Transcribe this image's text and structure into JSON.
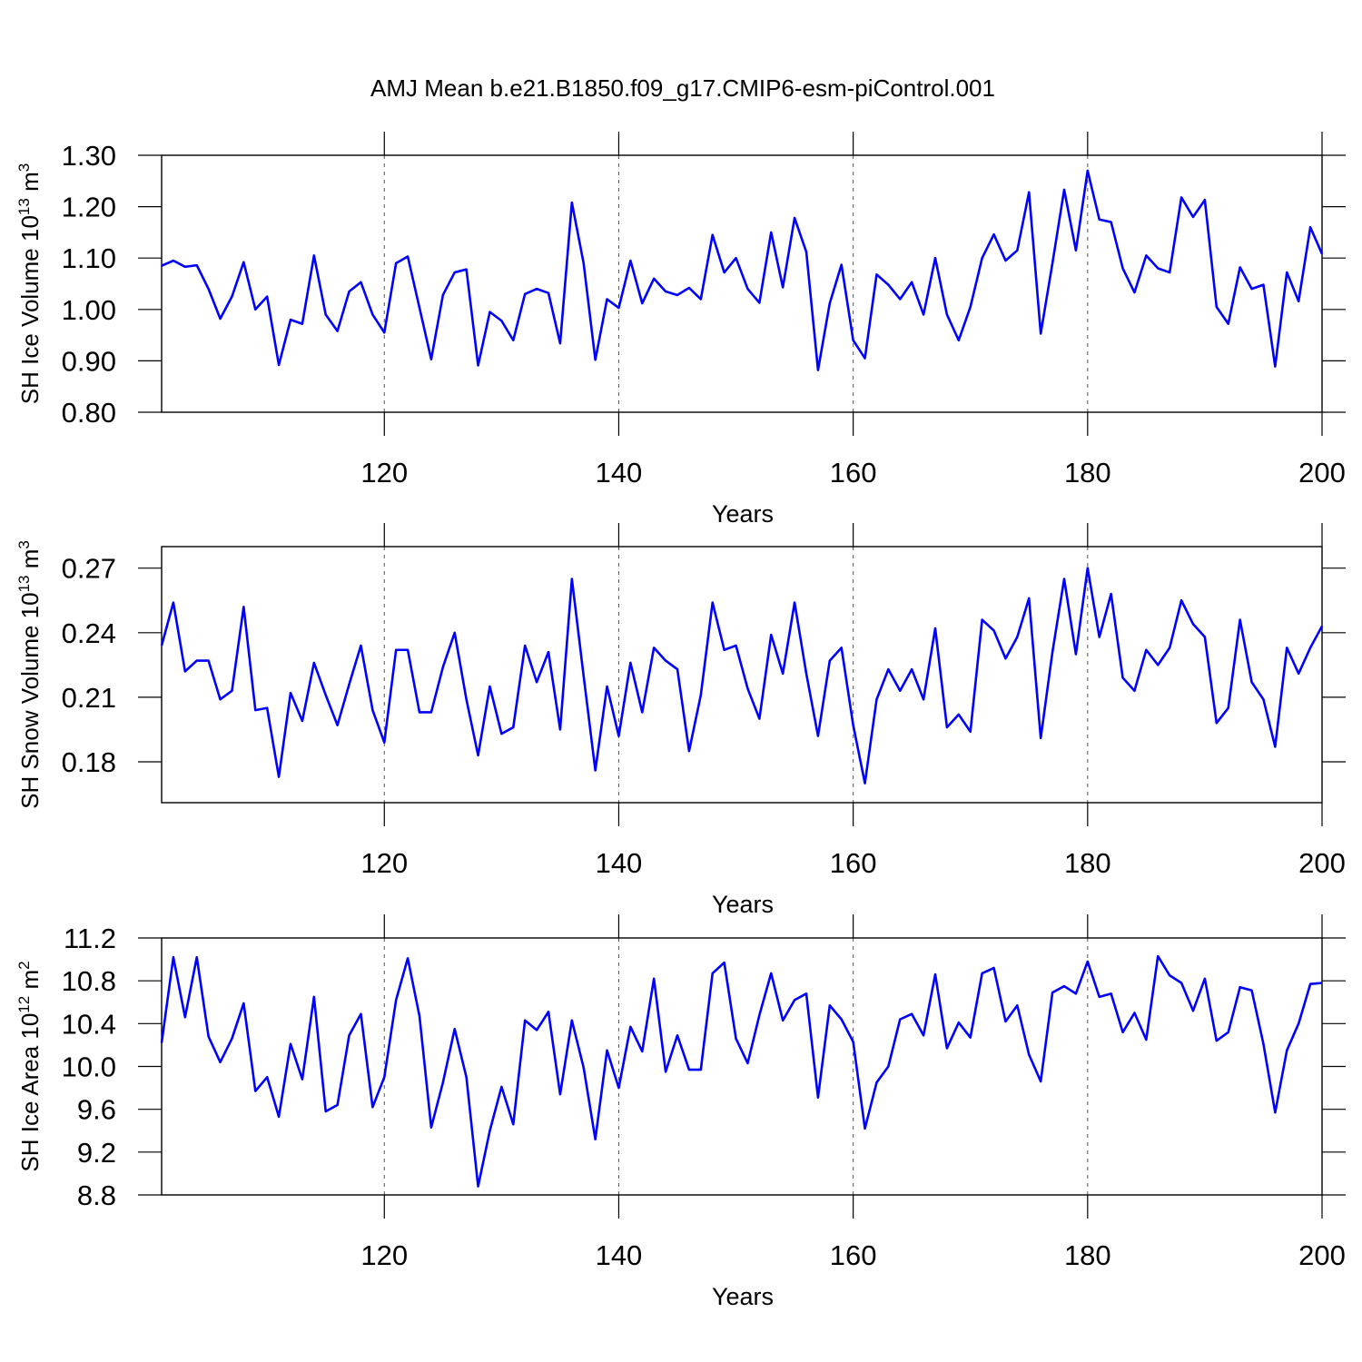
{
  "title": "AMJ Mean b.e21.B1850.f09_g17.CMIP6-esm-piControl.001",
  "chart_data": [
    {
      "type": "line",
      "xlabel": "Years",
      "ylabel": {
        "text": "SH Ice Volume 10",
        "power": "13",
        "unit": " m",
        "unit_power": "3"
      },
      "color": "#0000ff",
      "grid": true,
      "xlim": [
        101,
        200
      ],
      "xticks": [
        120,
        140,
        160,
        180,
        200
      ],
      "ylim": [
        0.8,
        1.3
      ],
      "yticks": [
        {
          "value": 0.8,
          "label": "0.80"
        },
        {
          "value": 0.9,
          "label": "0.90"
        },
        {
          "value": 1.0,
          "label": "1.00"
        },
        {
          "value": 1.1,
          "label": "1.10"
        },
        {
          "value": 1.2,
          "label": "1.20"
        },
        {
          "value": 1.3,
          "label": "1.30"
        }
      ],
      "x": [
        101,
        102,
        103,
        104,
        105,
        106,
        107,
        108,
        109,
        110,
        111,
        112,
        113,
        114,
        115,
        116,
        117,
        118,
        119,
        120,
        121,
        122,
        123,
        124,
        125,
        126,
        127,
        128,
        129,
        130,
        131,
        132,
        133,
        134,
        135,
        136,
        137,
        138,
        139,
        140,
        141,
        142,
        143,
        144,
        145,
        146,
        147,
        148,
        149,
        150,
        151,
        152,
        153,
        154,
        155,
        156,
        157,
        158,
        159,
        160,
        161,
        162,
        163,
        164,
        165,
        166,
        167,
        168,
        169,
        170,
        171,
        172,
        173,
        174,
        175,
        176,
        177,
        178,
        179,
        180,
        181,
        182,
        183,
        184,
        185,
        186,
        187,
        188,
        189,
        190,
        191,
        192,
        193,
        194,
        195,
        196,
        197,
        198,
        199,
        200
      ],
      "values": [
        1.085,
        1.095,
        1.083,
        1.086,
        1.04,
        0.982,
        1.025,
        1.092,
        1.0,
        1.025,
        0.892,
        0.98,
        0.972,
        1.105,
        0.99,
        0.958,
        1.035,
        1.053,
        0.99,
        0.955,
        1.09,
        1.103,
        1.003,
        0.903,
        1.028,
        1.072,
        1.078,
        0.891,
        0.995,
        0.978,
        0.94,
        1.03,
        1.04,
        1.032,
        0.934,
        1.208,
        1.09,
        0.902,
        1.02,
        1.003,
        1.095,
        1.012,
        1.06,
        1.035,
        1.028,
        1.042,
        1.02,
        1.145,
        1.072,
        1.1,
        1.04,
        1.013,
        1.15,
        1.043,
        1.178,
        1.112,
        0.882,
        1.012,
        1.087,
        0.94,
        0.905,
        1.068,
        1.048,
        1.02,
        1.053,
        0.99,
        1.1,
        0.99,
        0.94,
        1.005,
        1.1,
        1.146,
        1.095,
        1.115,
        1.228,
        0.953,
        1.09,
        1.233,
        1.115,
        1.27,
        1.175,
        1.17,
        1.08,
        1.033,
        1.105,
        1.08,
        1.072,
        1.218,
        1.18,
        1.213,
        1.005,
        0.972,
        1.082,
        1.04,
        1.048,
        0.889,
        1.072,
        1.016,
        1.16,
        1.108
      ]
    },
    {
      "type": "line",
      "xlabel": "Years",
      "ylabel": {
        "text": "SH Snow Volume 10",
        "power": "13",
        "unit": " m",
        "unit_power": "3"
      },
      "color": "#0000ff",
      "grid": true,
      "xlim": [
        101,
        200
      ],
      "xticks": [
        120,
        140,
        160,
        180,
        200
      ],
      "ylim": [
        0.161,
        0.28
      ],
      "yticks": [
        0.18,
        0.21,
        0.24,
        0.27
      ],
      "x": [
        101,
        102,
        103,
        104,
        105,
        106,
        107,
        108,
        109,
        110,
        111,
        112,
        113,
        114,
        115,
        116,
        117,
        118,
        119,
        120,
        121,
        122,
        123,
        124,
        125,
        126,
        127,
        128,
        129,
        130,
        131,
        132,
        133,
        134,
        135,
        136,
        137,
        138,
        139,
        140,
        141,
        142,
        143,
        144,
        145,
        146,
        147,
        148,
        149,
        150,
        151,
        152,
        153,
        154,
        155,
        156,
        157,
        158,
        159,
        160,
        161,
        162,
        163,
        164,
        165,
        166,
        167,
        168,
        169,
        170,
        171,
        172,
        173,
        174,
        175,
        176,
        177,
        178,
        179,
        180,
        181,
        182,
        183,
        184,
        185,
        186,
        187,
        188,
        189,
        190,
        191,
        192,
        193,
        194,
        195,
        196,
        197,
        198,
        199,
        200
      ],
      "values": [
        0.234,
        0.254,
        0.222,
        0.227,
        0.227,
        0.209,
        0.213,
        0.252,
        0.204,
        0.205,
        0.173,
        0.212,
        0.199,
        0.226,
        0.211,
        0.197,
        0.216,
        0.234,
        0.204,
        0.189,
        0.232,
        0.232,
        0.203,
        0.203,
        0.224,
        0.24,
        0.209,
        0.183,
        0.215,
        0.193,
        0.196,
        0.234,
        0.217,
        0.231,
        0.195,
        0.265,
        0.22,
        0.176,
        0.215,
        0.192,
        0.226,
        0.203,
        0.233,
        0.227,
        0.223,
        0.185,
        0.211,
        0.254,
        0.232,
        0.234,
        0.214,
        0.2,
        0.239,
        0.221,
        0.254,
        0.221,
        0.192,
        0.227,
        0.233,
        0.197,
        0.17,
        0.209,
        0.223,
        0.213,
        0.223,
        0.209,
        0.242,
        0.196,
        0.202,
        0.194,
        0.246,
        0.241,
        0.228,
        0.238,
        0.256,
        0.191,
        0.231,
        0.265,
        0.23,
        0.27,
        0.238,
        0.258,
        0.219,
        0.213,
        0.232,
        0.225,
        0.233,
        0.255,
        0.244,
        0.238,
        0.198,
        0.205,
        0.246,
        0.217,
        0.209,
        0.187,
        0.233,
        0.221,
        0.233,
        0.243
      ]
    },
    {
      "type": "line",
      "xlabel": "Years",
      "ylabel": {
        "text": "SH Ice Area 10",
        "power": "12",
        "unit": " m",
        "unit_power": "2"
      },
      "color": "#0000ff",
      "grid": true,
      "xlim": [
        101,
        200
      ],
      "xticks": [
        120,
        140,
        160,
        180,
        200
      ],
      "ylim": [
        8.8,
        11.2
      ],
      "yticks": [
        8.8,
        9.2,
        9.6,
        {
          "value": 10.0,
          "label": "10.0"
        },
        10.4,
        10.8,
        11.2
      ],
      "x": [
        101,
        102,
        103,
        104,
        105,
        106,
        107,
        108,
        109,
        110,
        111,
        112,
        113,
        114,
        115,
        116,
        117,
        118,
        119,
        120,
        121,
        122,
        123,
        124,
        125,
        126,
        127,
        128,
        129,
        130,
        131,
        132,
        133,
        134,
        135,
        136,
        137,
        138,
        139,
        140,
        141,
        142,
        143,
        144,
        145,
        146,
        147,
        148,
        149,
        150,
        151,
        152,
        153,
        154,
        155,
        156,
        157,
        158,
        159,
        160,
        161,
        162,
        163,
        164,
        165,
        166,
        167,
        168,
        169,
        170,
        171,
        172,
        173,
        174,
        175,
        176,
        177,
        178,
        179,
        180,
        181,
        182,
        183,
        184,
        185,
        186,
        187,
        188,
        189,
        190,
        191,
        192,
        193,
        194,
        195,
        196,
        197,
        198,
        199,
        200
      ],
      "values": [
        10.22,
        11.02,
        10.46,
        11.02,
        10.28,
        10.04,
        10.26,
        10.59,
        9.77,
        9.9,
        9.53,
        10.21,
        9.88,
        10.65,
        9.58,
        9.64,
        10.29,
        10.49,
        9.62,
        9.9,
        10.62,
        11.01,
        10.47,
        9.43,
        9.85,
        10.35,
        9.9,
        8.88,
        9.4,
        9.81,
        9.46,
        10.43,
        10.34,
        10.51,
        9.74,
        10.43,
        9.99,
        9.32,
        10.15,
        9.8,
        10.37,
        10.14,
        10.82,
        9.95,
        10.29,
        9.97,
        9.97,
        10.87,
        10.97,
        10.26,
        10.03,
        10.48,
        10.87,
        10.43,
        10.62,
        10.68,
        9.71,
        10.57,
        10.44,
        10.23,
        9.42,
        9.85,
        10.0,
        10.44,
        10.49,
        10.29,
        10.86,
        10.17,
        10.41,
        10.27,
        10.87,
        10.92,
        10.42,
        10.57,
        10.11,
        9.86,
        10.69,
        10.75,
        10.68,
        10.98,
        10.65,
        10.68,
        10.32,
        10.5,
        10.25,
        11.03,
        10.85,
        10.78,
        10.52,
        10.82,
        10.24,
        10.32,
        10.74,
        10.71,
        10.21,
        9.57,
        10.15,
        10.4,
        10.77,
        10.78
      ]
    }
  ]
}
